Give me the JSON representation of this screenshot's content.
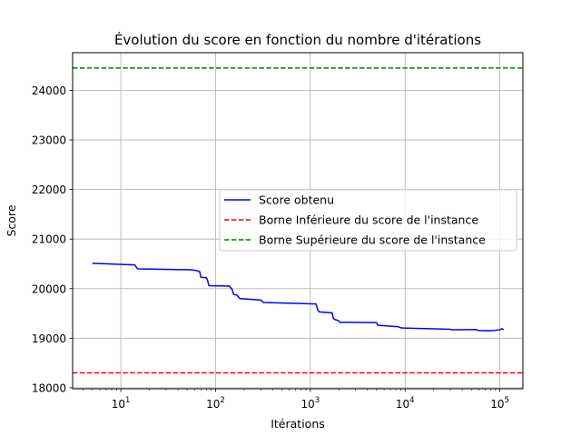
{
  "chart_data": {
    "type": "line",
    "title": "Évolution du score en fonction du nombre d'itérations",
    "xlabel": "Itérations",
    "ylabel": "Score",
    "xscale": "log",
    "xlim": [
      3.1,
      175000
    ],
    "ylim": [
      17980,
      24760
    ],
    "grid": true,
    "legend_position": "center-right",
    "x_ticks": [
      {
        "value": 10,
        "base": "10",
        "exp": "1"
      },
      {
        "value": 100,
        "base": "10",
        "exp": "2"
      },
      {
        "value": 1000,
        "base": "10",
        "exp": "3"
      },
      {
        "value": 10000,
        "base": "10",
        "exp": "4"
      },
      {
        "value": 100000,
        "base": "10",
        "exp": "5"
      }
    ],
    "y_ticks": [
      18000,
      19000,
      20000,
      21000,
      22000,
      23000,
      24000
    ],
    "series": [
      {
        "name": "Score obtenu",
        "color": "#0000ff",
        "style": "solid",
        "x": [
          5,
          14,
          15,
          55,
          65,
          68,
          70,
          80,
          82,
          85,
          140,
          150,
          155,
          165,
          170,
          180,
          300,
          320,
          1150,
          1200,
          1250,
          1700,
          1750,
          1800,
          2000,
          2050,
          2100,
          5000,
          5100,
          5200,
          8500,
          9000,
          9500,
          30000,
          31000,
          56000,
          58000,
          60000,
          80000,
          100000,
          105000,
          110000
        ],
        "y": [
          20510,
          20480,
          20400,
          20380,
          20360,
          20340,
          20230,
          20220,
          20180,
          20060,
          20050,
          19980,
          19880,
          19875,
          19860,
          19800,
          19770,
          19720,
          19690,
          19560,
          19530,
          19510,
          19400,
          19380,
          19350,
          19320,
          19320,
          19315,
          19270,
          19260,
          19230,
          19210,
          19205,
          19180,
          19170,
          19175,
          19160,
          19155,
          19150,
          19170,
          19190,
          19175
        ]
      },
      {
        "name": "Borne Inférieure du score de l'instance",
        "color": "#ff0000",
        "style": "dashed",
        "hline": 18300
      },
      {
        "name": "Borne Supérieure du score de l'instance",
        "color": "#008000",
        "style": "dashed",
        "hline": 24450
      }
    ]
  }
}
